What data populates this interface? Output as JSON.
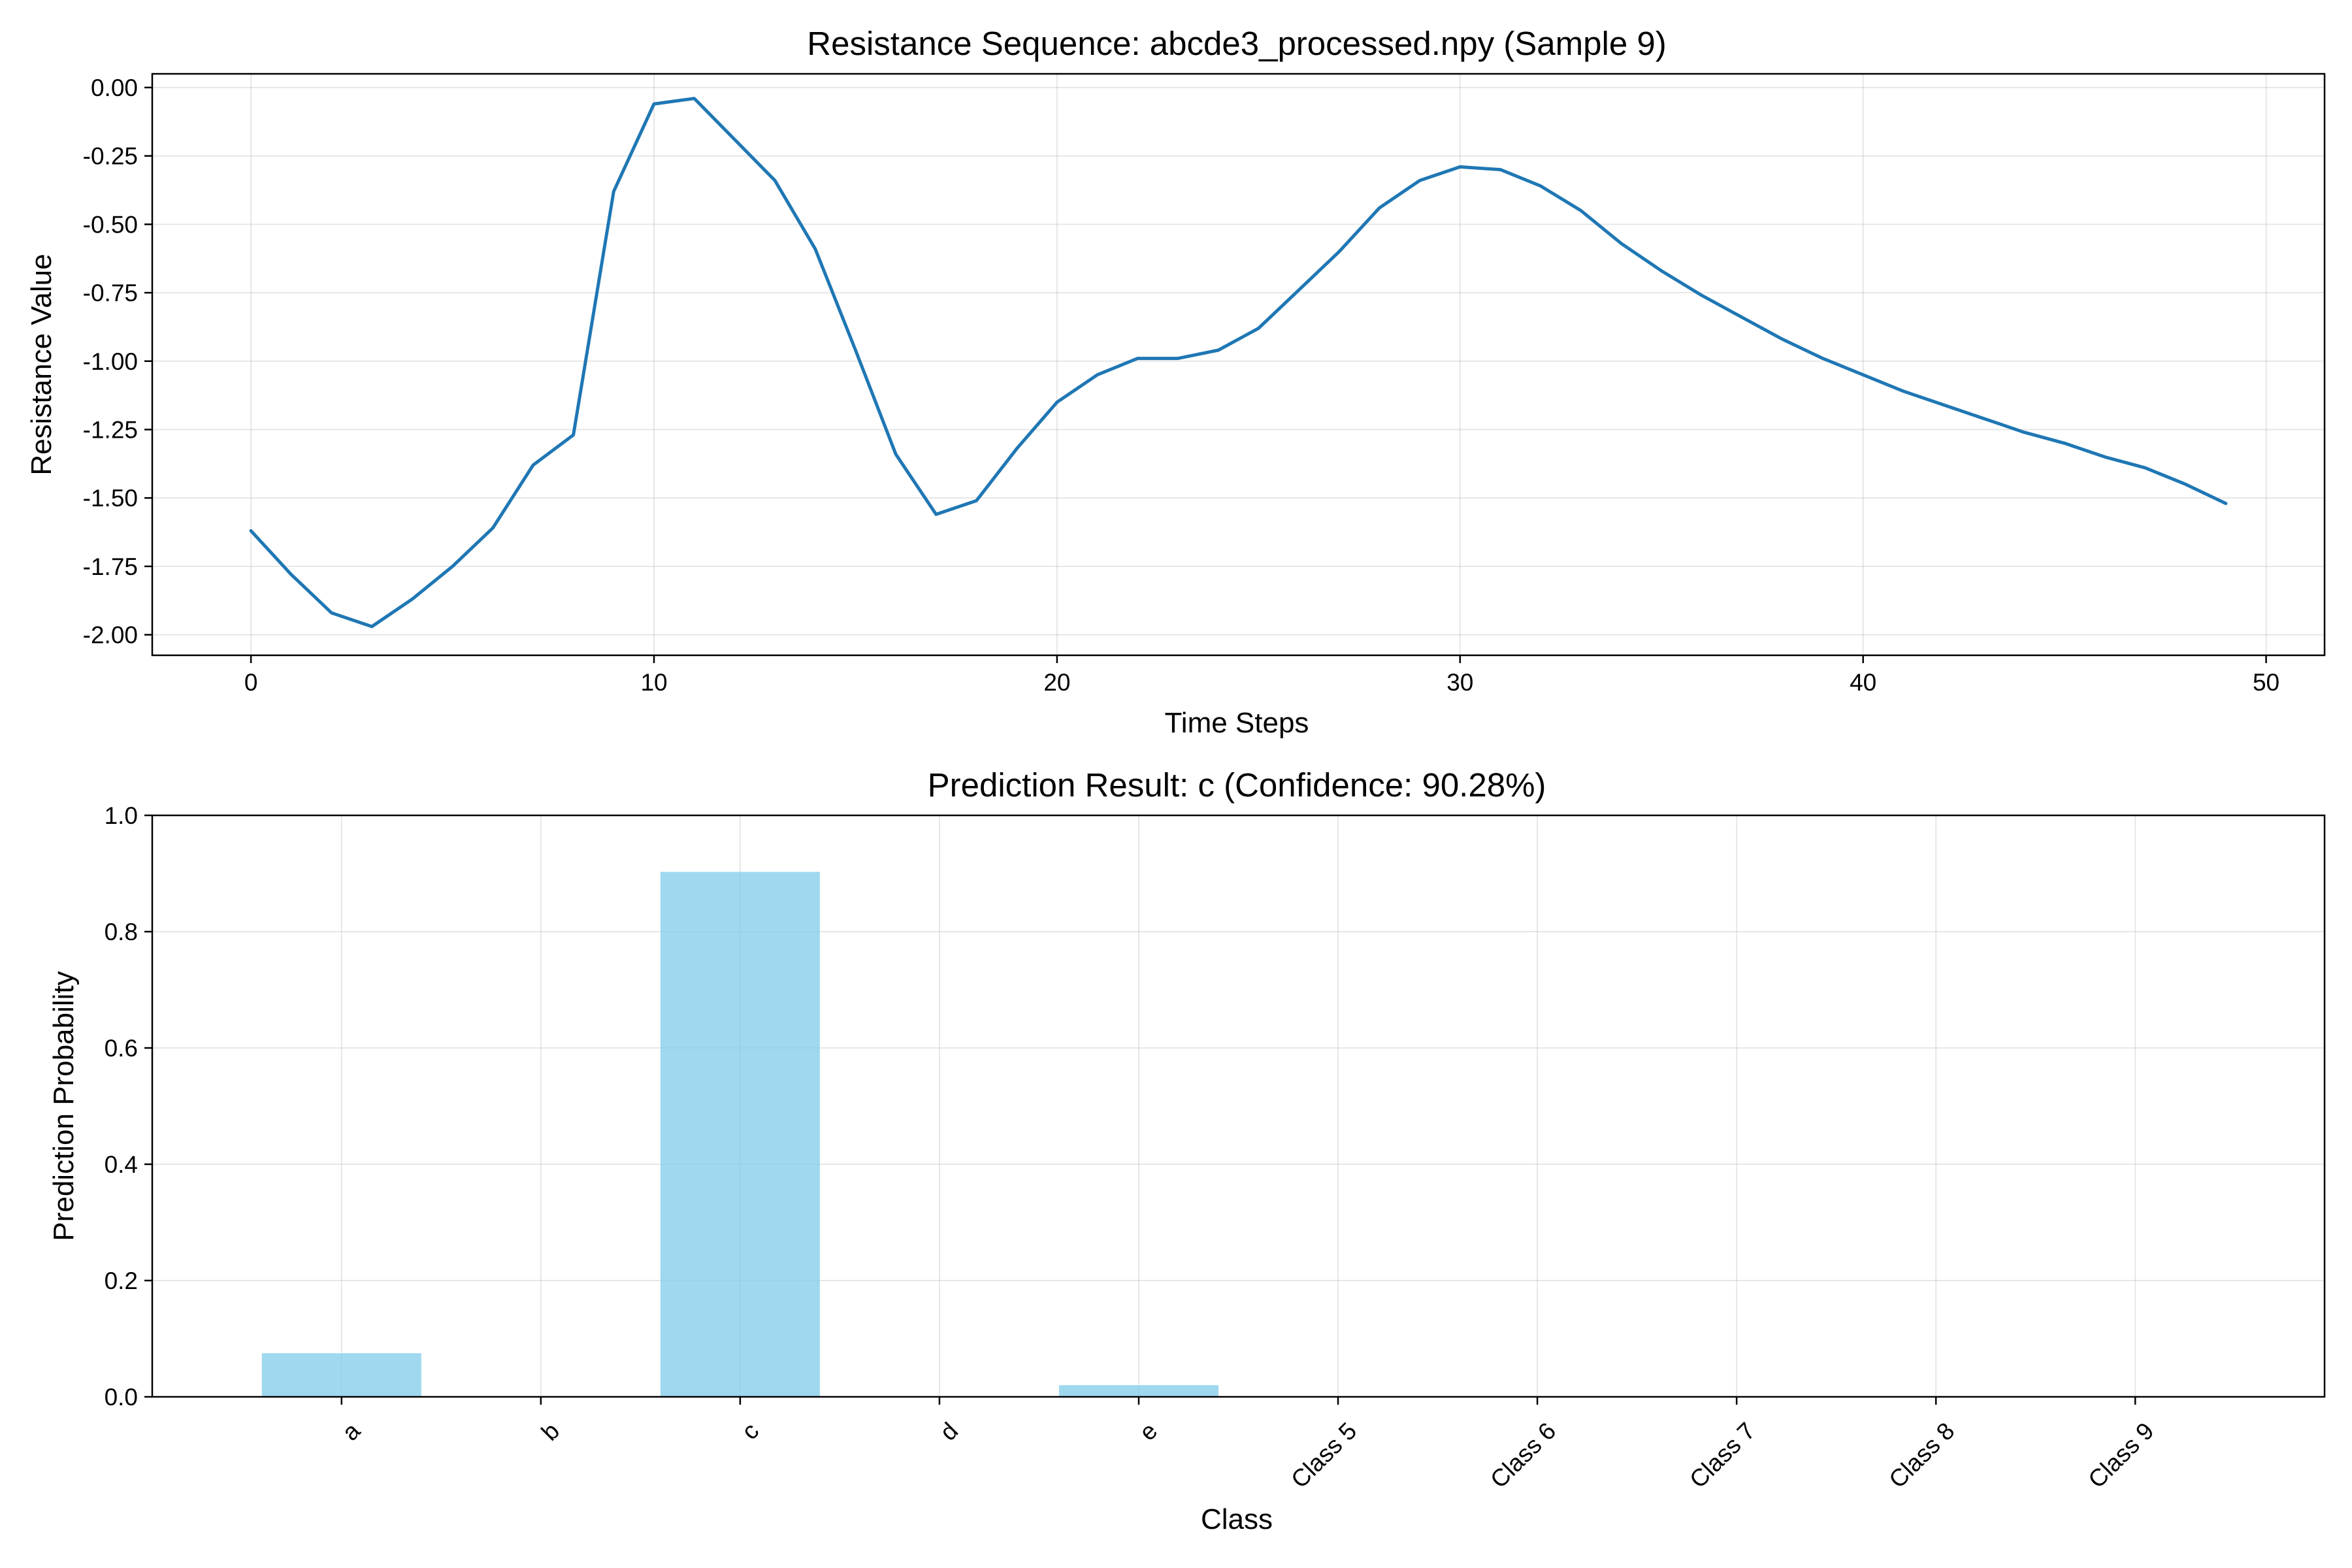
{
  "chart_data": [
    {
      "type": "line",
      "title": "Resistance Sequence: abcde3_processed.npy (Sample 9)",
      "xlabel": "Time Steps",
      "ylabel": "Resistance Value",
      "xlim": [
        -2.45,
        51.45
      ],
      "ylim": [
        -2.075,
        0.05
      ],
      "xticks": [
        0,
        10,
        20,
        30,
        40,
        50
      ],
      "xtick_labels": [
        "0",
        "10",
        "20",
        "30",
        "40",
        "50"
      ],
      "yticks": [
        0,
        -0.25,
        -0.5,
        -0.75,
        -1.0,
        -1.25,
        -1.5,
        -1.75,
        -2.0
      ],
      "ytick_labels": [
        "0.00",
        "-0.25",
        "-0.50",
        "-0.75",
        "-1.00",
        "-1.25",
        "-1.50",
        "-1.75",
        "-2.00"
      ],
      "grid": true,
      "color": "#1f77b4",
      "series": [
        {
          "x": [
            0,
            1,
            2,
            3,
            4,
            5,
            6,
            7,
            8,
            9,
            10,
            11,
            12,
            13,
            14,
            15,
            16,
            17,
            18,
            19,
            20,
            21,
            22,
            23,
            24,
            25,
            26,
            27,
            28,
            29,
            30,
            31,
            32,
            33,
            34,
            35,
            36,
            37,
            38,
            39,
            40,
            41,
            42,
            43,
            44,
            45,
            46,
            47,
            48,
            49
          ],
          "values": [
            -1.62,
            -1.78,
            -1.92,
            -1.97,
            -1.87,
            -1.75,
            -1.61,
            -1.38,
            -1.27,
            -0.38,
            -0.06,
            -0.04,
            -0.19,
            -0.34,
            -0.59,
            -0.96,
            -1.34,
            -1.56,
            -1.51,
            -1.32,
            -1.15,
            -1.05,
            -0.99,
            -0.99,
            -0.96,
            -0.88,
            -0.74,
            -0.6,
            -0.44,
            -0.34,
            -0.29,
            -0.3,
            -0.36,
            -0.45,
            -0.57,
            -0.67,
            -0.76,
            -0.84,
            -0.92,
            -0.99,
            -1.05,
            -1.11,
            -1.16,
            -1.21,
            -1.26,
            -1.3,
            -1.35,
            -1.39,
            -1.45,
            -1.52
          ]
        }
      ]
    },
    {
      "type": "bar",
      "title": "Prediction Result: c (Confidence: 90.28%)",
      "xlabel": "Class",
      "ylabel": "Prediction Probability",
      "ylim": [
        0,
        1.0
      ],
      "yticks": [
        0.0,
        0.2,
        0.4,
        0.6,
        0.8,
        1.0
      ],
      "ytick_labels": [
        "0.0",
        "0.2",
        "0.4",
        "0.6",
        "0.8",
        "1.0"
      ],
      "categories": [
        "a",
        "b",
        "c",
        "d",
        "e",
        "Class 5",
        "Class 6",
        "Class 7",
        "Class 8",
        "Class 9"
      ],
      "values": [
        0.075,
        0.0,
        0.9028,
        0.0,
        0.02,
        0.0,
        0.0,
        0.0,
        0.0,
        0.0
      ],
      "grid": true,
      "color": "#87ceeb"
    }
  ]
}
